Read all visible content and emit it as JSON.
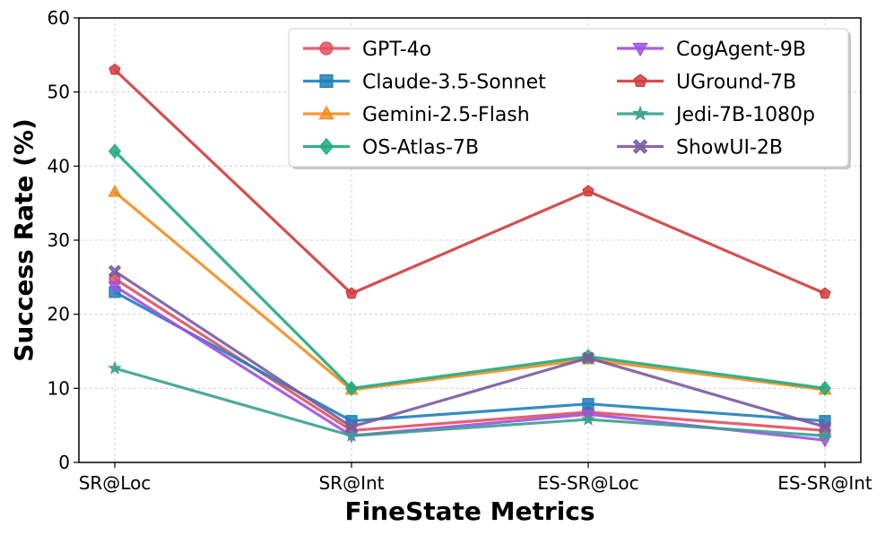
{
  "chart_data": {
    "type": "line",
    "title": "",
    "xlabel": "FineState Metrics",
    "ylabel": "Success Rate (%)",
    "categories": [
      "SR@Loc",
      "SR@Int",
      "ES-SR@Loc",
      "ES-SR@Int"
    ],
    "ylim": [
      0,
      60
    ],
    "yticks": [
      0,
      10,
      20,
      30,
      40,
      50,
      60
    ],
    "grid": true,
    "legend_placement": "top-right",
    "series": [
      {
        "name": "GPT-4o",
        "color": "#e05060",
        "marker": "circle",
        "values": [
          24.8,
          4.3,
          6.8,
          4.3
        ]
      },
      {
        "name": "Claude-3.5-Sonnet",
        "color": "#1f7fba",
        "marker": "square",
        "values": [
          23.0,
          5.6,
          7.9,
          5.6
        ]
      },
      {
        "name": "Gemini-2.5-Flash",
        "color": "#f58c1f",
        "marker": "triangle-up",
        "values": [
          36.5,
          9.8,
          13.9,
          9.8
        ]
      },
      {
        "name": "OS-Atlas-7B",
        "color": "#1faa80",
        "marker": "diamond",
        "values": [
          42.0,
          10.0,
          14.3,
          10.0
        ]
      },
      {
        "name": "CogAgent-9B",
        "color": "#a050e0",
        "marker": "triangle-down",
        "values": [
          23.8,
          3.6,
          6.5,
          3.0
        ]
      },
      {
        "name": "UGround-7B",
        "color": "#d03c3c",
        "marker": "pentagon",
        "values": [
          53.0,
          22.8,
          36.6,
          22.8
        ]
      },
      {
        "name": "Jedi-7B-1080p",
        "color": "#3aa090",
        "marker": "star",
        "values": [
          12.7,
          3.6,
          5.8,
          3.6
        ]
      },
      {
        "name": "ShowUI-2B",
        "color": "#7a5aa0",
        "marker": "x",
        "values": [
          25.8,
          4.8,
          14.1,
          4.8
        ]
      }
    ]
  }
}
